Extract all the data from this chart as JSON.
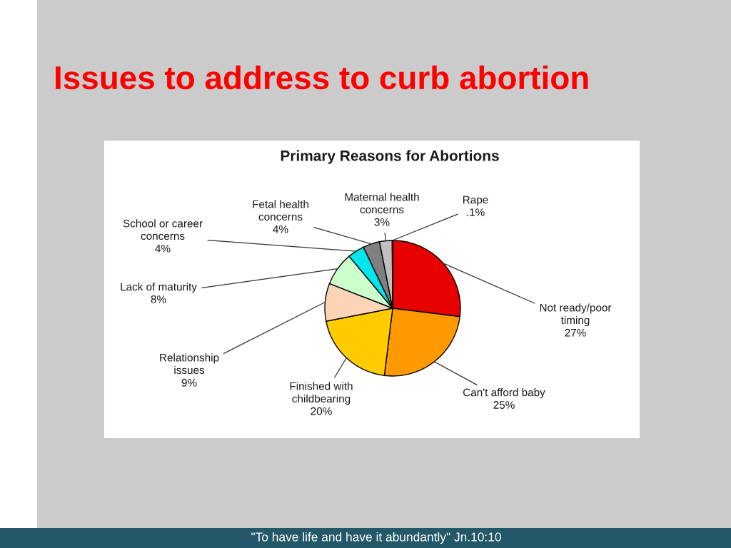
{
  "chart_data": {
    "type": "pie",
    "title": "Issues to address to curb abortion",
    "subtitle": "Primary Reasons for Abortions",
    "categories": [
      "Not ready/poor\ntiming",
      "Can't afford baby",
      "Finished with\nchildbearing",
      "Relationship\nissues",
      "Lack of maturity",
      "School or career\nconcerns",
      "Fetal health\nconcerns",
      "Maternal health\nconcerns",
      "Rape"
    ],
    "values": [
      27,
      25,
      20,
      9,
      8,
      4,
      4,
      3,
      0.1
    ],
    "value_labels": [
      "27%",
      "25%",
      "20%",
      "9%",
      "8%",
      "4%",
      "4%",
      "3%",
      ".1%"
    ],
    "colors": [
      "#e60000",
      "#ff9900",
      "#ffcc00",
      "#fbd5b5",
      "#ccffcc",
      "#00e5ee",
      "#808080",
      "#c0c0c0",
      "#ffffff"
    ],
    "annotations": [
      "\"To have life and have it abundantly\" Jn.10:10"
    ]
  }
}
